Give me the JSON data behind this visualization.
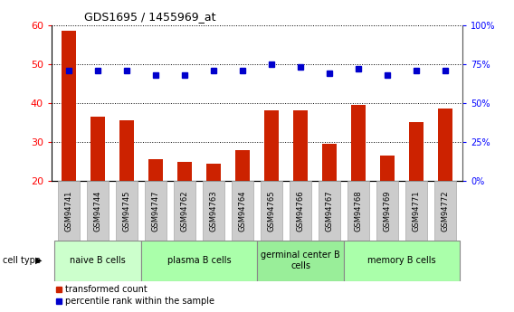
{
  "title": "GDS1695 / 1455969_at",
  "samples": [
    "GSM94741",
    "GSM94744",
    "GSM94745",
    "GSM94747",
    "GSM94762",
    "GSM94763",
    "GSM94764",
    "GSM94765",
    "GSM94766",
    "GSM94767",
    "GSM94768",
    "GSM94769",
    "GSM94771",
    "GSM94772"
  ],
  "transformed_count": [
    58.5,
    36.5,
    35.5,
    25.5,
    25.0,
    24.5,
    28.0,
    38.0,
    38.0,
    29.5,
    39.5,
    26.5,
    35.0,
    38.5
  ],
  "percentile_rank": [
    71,
    71,
    71,
    68,
    68,
    71,
    71,
    75,
    73,
    69,
    72,
    68,
    71,
    71
  ],
  "bar_color": "#cc2200",
  "dot_color": "#0000cc",
  "ylim_left": [
    20,
    60
  ],
  "ylim_right": [
    0,
    100
  ],
  "yticks_left": [
    20,
    30,
    40,
    50,
    60
  ],
  "yticks_right": [
    0,
    25,
    50,
    75,
    100
  ],
  "ytick_labels_right": [
    "0%",
    "25%",
    "50%",
    "75%",
    "100%"
  ],
  "cell_groups": [
    {
      "label": "naive B cells",
      "start": 0,
      "end": 3,
      "color": "#ccffcc"
    },
    {
      "label": "plasma B cells",
      "start": 3,
      "end": 7,
      "color": "#aaffaa"
    },
    {
      "label": "germinal center B\ncells",
      "start": 7,
      "end": 10,
      "color": "#99ee99"
    },
    {
      "label": "memory B cells",
      "start": 10,
      "end": 14,
      "color": "#aaffaa"
    }
  ],
  "tick_bg_color": "#cccccc",
  "legend_bar_label": "transformed count",
  "legend_dot_label": "percentile rank within the sample",
  "cell_type_label": "cell type"
}
